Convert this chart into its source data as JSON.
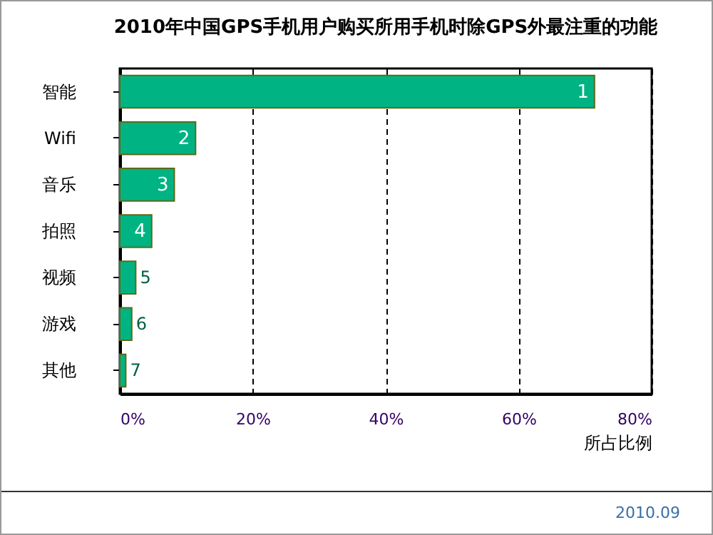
{
  "chart_data": {
    "type": "bar",
    "orientation": "horizontal",
    "title": "2010年中国GPS手机用户购买所用手机时除GPS外最注重的功能",
    "xlabel": "所占比例",
    "categories": [
      "智能",
      "Wifi",
      "音乐",
      "拍照",
      "视频",
      "游戏",
      "其他"
    ],
    "values": [
      71.4,
      11.4,
      8.2,
      4.8,
      2.4,
      1.8,
      0.9
    ],
    "color": "#00b383",
    "xlim": [
      0,
      80
    ],
    "xticks": [
      {
        "value": 0,
        "label": "0%"
      },
      {
        "value": 20,
        "label": "20%"
      },
      {
        "value": 40,
        "label": "40%"
      },
      {
        "value": 60,
        "label": "60%"
      },
      {
        "value": 80,
        "label": "80%"
      }
    ],
    "grid": "x",
    "annotations": [
      "2010.09",
      {
        "text": "1",
        "x": 71.4,
        "y": "智能"
      },
      {
        "text": "2",
        "x": 11.4,
        "y": "Wifi"
      },
      {
        "text": "3",
        "x": 8.2,
        "y": "音乐"
      },
      {
        "text": "4",
        "x": 4.8,
        "y": "拍照"
      },
      {
        "text": "5",
        "x": 2.4,
        "y": "视频"
      },
      {
        "text": "6",
        "x": 1.8,
        "y": "游戏"
      },
      {
        "text": "7",
        "x": 0.9,
        "y": "其他"
      }
    ]
  }
}
